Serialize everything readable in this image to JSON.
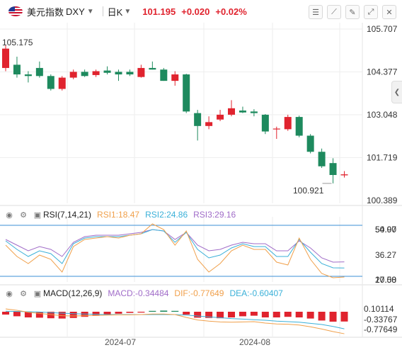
{
  "header": {
    "symbol_name": "美元指数",
    "symbol_code": "DXY",
    "period": "日K",
    "last_price": "101.195",
    "change": "+0.020",
    "change_pct": "+0.02%",
    "colors": {
      "up": "#e0232e",
      "down": "#1e8a5e"
    }
  },
  "toolbar": {
    "icons": [
      "chart-settings-icon",
      "draw-line-icon",
      "eraser-icon",
      "expand-icon",
      "close-icon"
    ]
  },
  "main_chart": {
    "y_axis_labels": [
      "105.707",
      "104.377",
      "103.048",
      "101.719",
      "100.389"
    ],
    "high_label": "105.175",
    "low_label": "100.921",
    "x_axis_labels": [
      "2024-07",
      "2024-08"
    ]
  },
  "rsi": {
    "name": "RSI(7,14,21)",
    "rsi1_label": "RSI1:18.47",
    "rsi2_label": "RSI2:24.86",
    "rsi3_label": "RSI3:29.16",
    "axis_labels": [
      "50.00",
      "54.97",
      "36.27",
      "17.58",
      "20.00"
    ],
    "colors": {
      "rsi1": "#f0a04b",
      "rsi2": "#3ab0d8",
      "rsi3": "#a06cc8"
    }
  },
  "macd": {
    "name": "MACD(12,26,9)",
    "macd_label": "MACD:-0.34484",
    "dif_label": "DIF:-0.77649",
    "dea_label": "DEA:-0.60407",
    "axis_labels": [
      "0.10114",
      "-0.33767",
      "-0.77649"
    ],
    "colors": {
      "macd": "#a06cc8",
      "dif": "#f0a04b",
      "dea": "#3ab0d8"
    }
  },
  "chart_data": {
    "type": "candlestick",
    "x_labels": [
      "2024-07",
      "2024-08"
    ],
    "ylim": [
      100.389,
      105.707
    ],
    "candles": [
      {
        "o": 104.5,
        "h": 105.2,
        "l": 104.4,
        "c": 105.1
      },
      {
        "o": 104.6,
        "h": 104.85,
        "l": 104.2,
        "c": 104.3
      },
      {
        "o": 104.3,
        "h": 104.4,
        "l": 104.05,
        "c": 104.25
      },
      {
        "o": 104.5,
        "h": 104.7,
        "l": 104.2,
        "c": 104.25
      },
      {
        "o": 104.25,
        "h": 104.3,
        "l": 103.8,
        "c": 103.85
      },
      {
        "o": 103.85,
        "h": 104.25,
        "l": 103.8,
        "c": 104.2
      },
      {
        "o": 104.2,
        "h": 104.45,
        "l": 104.15,
        "c": 104.38
      },
      {
        "o": 104.38,
        "h": 104.45,
        "l": 104.22,
        "c": 104.25
      },
      {
        "o": 104.28,
        "h": 104.45,
        "l": 104.22,
        "c": 104.4
      },
      {
        "o": 104.42,
        "h": 104.55,
        "l": 104.3,
        "c": 104.35
      },
      {
        "o": 104.38,
        "h": 104.45,
        "l": 104.1,
        "c": 104.3
      },
      {
        "o": 104.38,
        "h": 104.45,
        "l": 104.25,
        "c": 104.3
      },
      {
        "o": 104.22,
        "h": 104.6,
        "l": 104.2,
        "c": 104.5
      },
      {
        "o": 104.5,
        "h": 104.7,
        "l": 104.45,
        "c": 104.45
      },
      {
        "o": 104.45,
        "h": 104.5,
        "l": 104.1,
        "c": 104.1
      },
      {
        "o": 104.1,
        "h": 104.4,
        "l": 103.95,
        "c": 104.3
      },
      {
        "o": 104.3,
        "h": 104.32,
        "l": 103.1,
        "c": 103.15
      },
      {
        "o": 103.1,
        "h": 103.2,
        "l": 102.25,
        "c": 102.7
      },
      {
        "o": 102.7,
        "h": 103.0,
        "l": 102.6,
        "c": 102.82
      },
      {
        "o": 102.9,
        "h": 103.2,
        "l": 102.85,
        "c": 103.05
      },
      {
        "o": 103.05,
        "h": 103.5,
        "l": 103.0,
        "c": 103.25
      },
      {
        "o": 103.18,
        "h": 103.3,
        "l": 103.1,
        "c": 103.12
      },
      {
        "o": 103.15,
        "h": 103.22,
        "l": 103.0,
        "c": 103.1
      },
      {
        "o": 103.05,
        "h": 103.07,
        "l": 102.45,
        "c": 102.53
      },
      {
        "o": 102.6,
        "h": 102.68,
        "l": 102.3,
        "c": 102.62
      },
      {
        "o": 102.6,
        "h": 103.05,
        "l": 102.55,
        "c": 102.98
      },
      {
        "o": 102.98,
        "h": 103.02,
        "l": 102.35,
        "c": 102.4
      },
      {
        "o": 102.4,
        "h": 102.45,
        "l": 101.85,
        "c": 101.9
      },
      {
        "o": 101.9,
        "h": 102.0,
        "l": 101.4,
        "c": 101.45
      },
      {
        "o": 101.55,
        "h": 101.7,
        "l": 100.92,
        "c": 101.18
      },
      {
        "o": 101.17,
        "h": 101.3,
        "l": 101.1,
        "c": 101.2
      }
    ],
    "rsi": {
      "rsi1": [
        41,
        33,
        28,
        34,
        31,
        22,
        40,
        45,
        46,
        47,
        46,
        48,
        49,
        56,
        52,
        41,
        51,
        31,
        22,
        28,
        37,
        41,
        38,
        38,
        29,
        27,
        46,
        31,
        21,
        18,
        18.47
      ],
      "rsi2": [
        44,
        38,
        33,
        37,
        35,
        28,
        42,
        46,
        47,
        47,
        47,
        48,
        49,
        52,
        51,
        43,
        50,
        38,
        32,
        34,
        39,
        42,
        40,
        40,
        33,
        33,
        45,
        36,
        28,
        25,
        24.86
      ],
      "rsi3": [
        45,
        41,
        37,
        40,
        38,
        33,
        43,
        47,
        48,
        48,
        48,
        49,
        50,
        52,
        51,
        45,
        50,
        41,
        37,
        38,
        41,
        43,
        42,
        42,
        37,
        37,
        44,
        39,
        32,
        29,
        29.16
      ]
    },
    "macd": {
      "histogram": [
        -0.1,
        -0.16,
        -0.2,
        -0.21,
        -0.23,
        -0.24,
        -0.22,
        -0.18,
        -0.14,
        -0.1,
        -0.07,
        -0.04,
        -0.01,
        0.03,
        0.04,
        0.03,
        -0.1,
        -0.21,
        -0.22,
        -0.23,
        -0.2,
        -0.16,
        -0.14,
        -0.2,
        -0.2,
        -0.18,
        -0.2,
        -0.24,
        -0.31,
        -0.35,
        -0.34484
      ],
      "dif": [
        0.1,
        0.05,
        -0.02,
        -0.06,
        -0.1,
        -0.14,
        -0.15,
        -0.14,
        -0.13,
        -0.12,
        -0.11,
        -0.11,
        -0.1,
        -0.08,
        -0.08,
        -0.1,
        -0.2,
        -0.29,
        -0.33,
        -0.36,
        -0.37,
        -0.36,
        -0.35,
        -0.4,
        -0.43,
        -0.44,
        -0.47,
        -0.53,
        -0.61,
        -0.7,
        -0.77649
      ],
      "dea": [
        0.02,
        0.01,
        0.0,
        -0.01,
        -0.03,
        -0.05,
        -0.07,
        -0.08,
        -0.09,
        -0.1,
        -0.1,
        -0.1,
        -0.1,
        -0.1,
        -0.1,
        -0.1,
        -0.12,
        -0.15,
        -0.18,
        -0.21,
        -0.24,
        -0.26,
        -0.28,
        -0.3,
        -0.33,
        -0.35,
        -0.37,
        -0.41,
        -0.45,
        -0.52,
        -0.60407
      ]
    },
    "grid": true
  }
}
